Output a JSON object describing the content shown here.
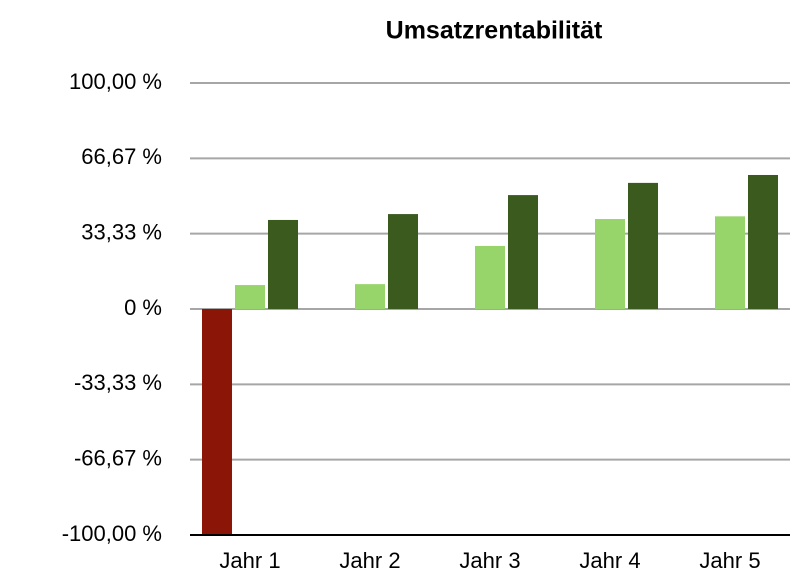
{
  "chart_data": {
    "type": "bar",
    "title": "Umsatzrentabilität",
    "categories": [
      "Jahr 1",
      "Jahr 2",
      "Jahr 3",
      "Jahr 4",
      "Jahr 5"
    ],
    "series": [
      {
        "color": "#8b1506",
        "values": [
          -100,
          0,
          0,
          0,
          0
        ]
      },
      {
        "color": "#97d46a",
        "values": [
          10.6,
          11,
          27.9,
          39.8,
          41
        ]
      },
      {
        "color": "#3a5a1e",
        "values": [
          39.4,
          42,
          50.4,
          55.8,
          59.3
        ]
      }
    ],
    "ylim": [
      -100,
      100
    ],
    "yticks": [
      {
        "value": -100,
        "label": "-100,00 %"
      },
      {
        "value": -66.67,
        "label": "-66,67 %"
      },
      {
        "value": -33.33,
        "label": "-33,33 %"
      },
      {
        "value": 0,
        "label": "0 %"
      },
      {
        "value": 33.33,
        "label": "33,33 %"
      },
      {
        "value": 66.67,
        "label": "66,67 %"
      },
      {
        "value": 100,
        "label": "100,00 %"
      }
    ],
    "grid": true
  }
}
